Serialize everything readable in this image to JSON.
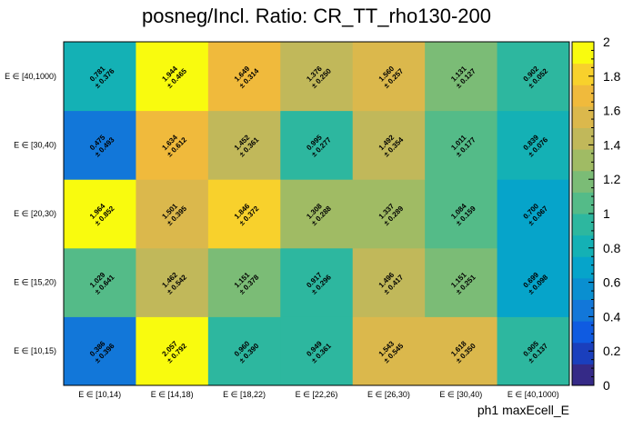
{
  "chart_data": {
    "type": "heatmap",
    "title": "posneg/Incl. Ratio: CR_TT_rho130-200",
    "xlabel": "ph1 maxEcell_E",
    "ylabel": "",
    "x_categories": [
      "E ∈ [10,14)",
      "E ∈ [14,18)",
      "E ∈ [18,22)",
      "E ∈ [22,26)",
      "E ∈ [26,30)",
      "E ∈ [30,40)",
      "E ∈ [40,1000)"
    ],
    "y_categories": [
      "E ∈ [10,15)",
      "E ∈ [15,20)",
      "E ∈ [20,30)",
      "E ∈ [30,40)",
      "E ∈ [40,1000)"
    ],
    "values": [
      [
        0.386,
        2.057,
        0.96,
        0.949,
        1.543,
        1.618,
        0.905
      ],
      [
        1.029,
        1.462,
        1.151,
        0.917,
        1.496,
        1.151,
        0.699
      ],
      [
        1.964,
        1.501,
        1.846,
        1.308,
        1.337,
        1.084,
        0.7
      ],
      [
        0.475,
        1.634,
        1.452,
        0.995,
        1.492,
        1.011,
        0.839
      ],
      [
        0.781,
        1.944,
        1.649,
        1.376,
        1.56,
        1.131,
        0.902
      ]
    ],
    "value_labels": [
      [
        "0.386",
        "2.057",
        "0.960",
        "0.949",
        "1.543",
        "1.618",
        "0.905"
      ],
      [
        "1.029",
        "1.462",
        "1.151",
        "0.917",
        "1.496",
        "1.151",
        "0.699"
      ],
      [
        "1.964",
        "1.501",
        "1.846",
        "1.308",
        "1.337",
        "1.084",
        "0.700"
      ],
      [
        "0.475",
        "1.634",
        "1.452",
        "0.995",
        "1.492",
        "1.011",
        "0.839"
      ],
      [
        "0.781",
        "1.944",
        "1.649",
        "1.376",
        "1.560",
        "1.131",
        "0.902"
      ]
    ],
    "error_labels": [
      [
        "± 0.396",
        "± 0.792",
        "± 0.390",
        "± 0.361",
        "± 0.545",
        "± 0.350",
        "± 0.137"
      ],
      [
        "± 0.641",
        "± 0.542",
        "± 0.378",
        "± 0.296",
        "± 0.417",
        "± 0.251",
        "± 0.098"
      ],
      [
        "± 0.852",
        "± 0.395",
        "± 0.372",
        "± 0.288",
        "± 0.289",
        "± 0.159",
        "± 0.067"
      ],
      [
        "± 0.493",
        "± 0.612",
        "± 0.361",
        "± 0.277",
        "± 0.354",
        "± 0.177",
        "± 0.076"
      ],
      [
        "± 0.376",
        "± 0.465",
        "± 0.314",
        "± 0.250",
        "± 0.257",
        "± 0.127",
        "± 0.052"
      ]
    ],
    "zlim": [
      0,
      2
    ],
    "z_ticks": [
      "0",
      "0.2",
      "0.4",
      "0.6",
      "0.8",
      "1",
      "1.2",
      "1.4",
      "1.6",
      "1.8",
      "2"
    ],
    "colorbar_position": "right",
    "palette": [
      "#352a87",
      "#1a3fbd",
      "#0f5be1",
      "#1277d9",
      "#0a8fd0",
      "#06a4ca",
      "#14b1b5",
      "#2db79f",
      "#54bb88",
      "#7bbc76",
      "#a0bb64",
      "#c1b85a",
      "#dbb84c",
      "#f0ba3c",
      "#f8d12c",
      "#f9fb0e"
    ]
  }
}
